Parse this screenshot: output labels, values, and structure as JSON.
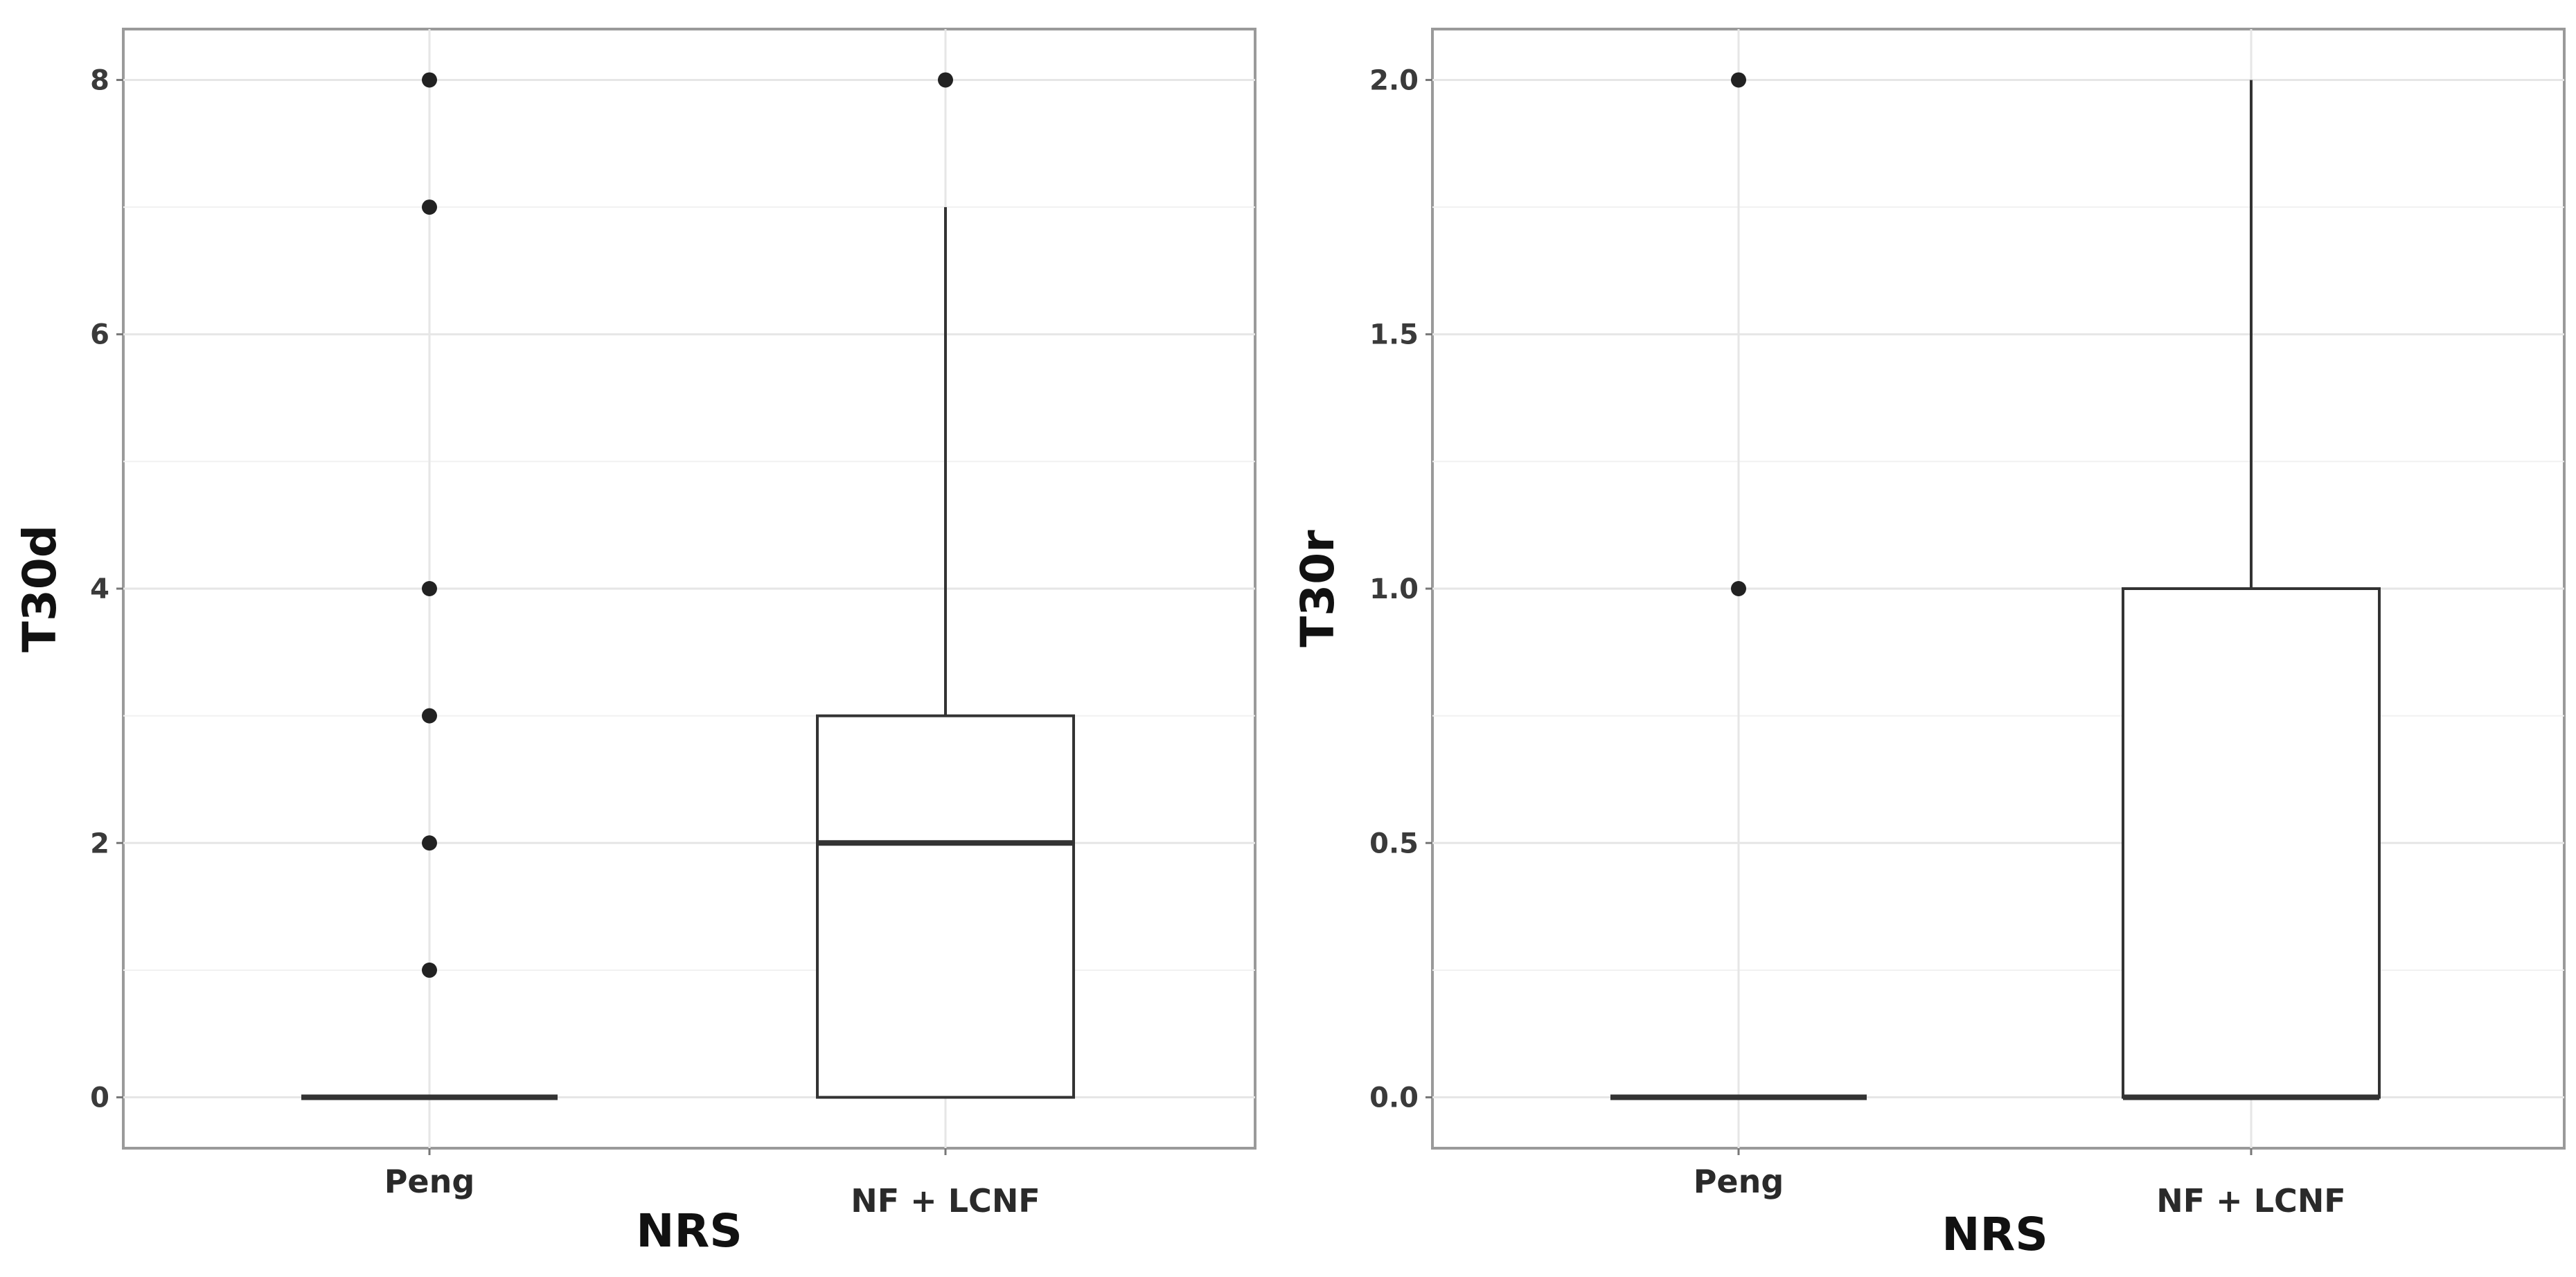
{
  "chart_data": [
    {
      "type": "box",
      "xlabel": "NRS",
      "ylabel": "T30d",
      "ylim": [
        -0.4,
        8.4
      ],
      "yticks": [
        0,
        2,
        4,
        6,
        8
      ],
      "ytick_labels": [
        "0",
        "2",
        "4",
        "6",
        "8"
      ],
      "categories": [
        "Peng",
        "NF + LCNF"
      ],
      "boxes": [
        {
          "category": "Peng",
          "min": 0,
          "q1": 0,
          "median": 0,
          "q3": 0,
          "max": 0,
          "outliers": [
            1,
            2,
            3,
            4,
            7,
            8
          ]
        },
        {
          "category": "NF + LCNF",
          "min": 0,
          "q1": 0,
          "median": 2,
          "q3": 3,
          "max": 7,
          "outliers": [
            8
          ]
        }
      ],
      "grid": true
    },
    {
      "type": "box",
      "xlabel": "NRS",
      "ylabel": "T30r",
      "ylim": [
        -0.1,
        2.1
      ],
      "yticks": [
        0.0,
        0.5,
        1.0,
        1.5,
        2.0
      ],
      "ytick_labels": [
        "0.0",
        "0.5",
        "1.0",
        "1.5",
        "2.0"
      ],
      "categories": [
        "Peng",
        "NF + LCNF"
      ],
      "boxes": [
        {
          "category": "Peng",
          "min": 0,
          "q1": 0,
          "median": 0,
          "q3": 0,
          "max": 0,
          "outliers": [
            1,
            2
          ]
        },
        {
          "category": "NF + LCNF",
          "min": 0,
          "q1": 0,
          "median": 0,
          "q3": 1,
          "max": 2,
          "outliers": []
        }
      ],
      "grid": true
    }
  ]
}
